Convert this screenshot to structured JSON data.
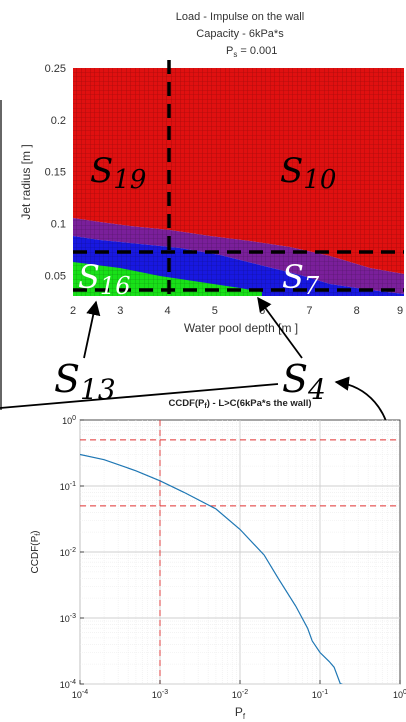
{
  "chart_data": [
    {
      "type": "heatmap",
      "title_lines": [
        "Load - Impulse on the wall",
        "Capacity - 6kPa*s",
        "P",
        "s",
        " = 0.001"
      ],
      "xlabel": "Water pool depth  [m ]",
      "ylabel": "Jet radius  [m ]",
      "xlim": [
        2,
        9
      ],
      "ylim": [
        0.03,
        0.25
      ],
      "x_ticks": [
        "2",
        "3",
        "4",
        "5",
        "6",
        "7",
        "8",
        "9"
      ],
      "y_ticks": [
        "0.05",
        "0.1",
        "0.15",
        "0.2",
        "0.25"
      ],
      "regions": [
        {
          "name": "red",
          "color": "#e01010"
        },
        {
          "name": "purple",
          "color": "#7a1f9a"
        },
        {
          "name": "blue",
          "color": "#1818e0"
        },
        {
          "name": "green",
          "color": "#18e018"
        }
      ],
      "dashed_lines": {
        "x": 4,
        "y": [
          0.075,
          0.04
        ]
      },
      "region_labels": [
        {
          "sym": "S",
          "sub": "19"
        },
        {
          "sym": "S",
          "sub": "10"
        },
        {
          "sym": "S",
          "sub": "16"
        },
        {
          "sym": "S",
          "sub": "7"
        },
        {
          "sym": "S",
          "sub": "13"
        },
        {
          "sym": "S",
          "sub": "4"
        }
      ]
    },
    {
      "type": "line",
      "title_parts": [
        "CCDF(P",
        "f",
        ") - L>C(6kPa*s the wall)"
      ],
      "xlabel": "P",
      "xlabel_sub": "f",
      "ylabel": "CCDF(P",
      "ylabel_sub": "f",
      "ylabel_end": ")",
      "x_scale": "log",
      "y_scale": "log",
      "xlim": [
        0.0001,
        1
      ],
      "ylim": [
        0.0001,
        1
      ],
      "x_ticks": [
        {
          "b": "10",
          "e": "-4"
        },
        {
          "b": "10",
          "e": "-3"
        },
        {
          "b": "10",
          "e": "-2"
        },
        {
          "b": "10",
          "e": "-1"
        },
        {
          "b": "10",
          "e": "0"
        }
      ],
      "y_ticks": [
        {
          "b": "10",
          "e": "-4"
        },
        {
          "b": "10",
          "e": "-3"
        },
        {
          "b": "10",
          "e": "-2"
        },
        {
          "b": "10",
          "e": "-1"
        },
        {
          "b": "10",
          "e": "0"
        }
      ],
      "series": [
        {
          "color": "#1f77b4",
          "x": [
            0.0001,
            0.0002,
            0.0005,
            0.001,
            0.002,
            0.005,
            0.01,
            0.02,
            0.03,
            0.05,
            0.07,
            0.08,
            0.1,
            0.13,
            0.15,
            0.18,
            0.19
          ],
          "y": [
            0.3,
            0.25,
            0.17,
            0.12,
            0.08,
            0.045,
            0.022,
            0.009,
            0.004,
            0.0015,
            0.0007,
            0.00045,
            0.0003,
            0.00022,
            0.00018,
            0.0001,
            0.0001
          ]
        }
      ],
      "reference_lines": {
        "h": [
          0.5,
          0.05
        ],
        "v": [
          0.001
        ],
        "color": "#e03030"
      }
    }
  ]
}
